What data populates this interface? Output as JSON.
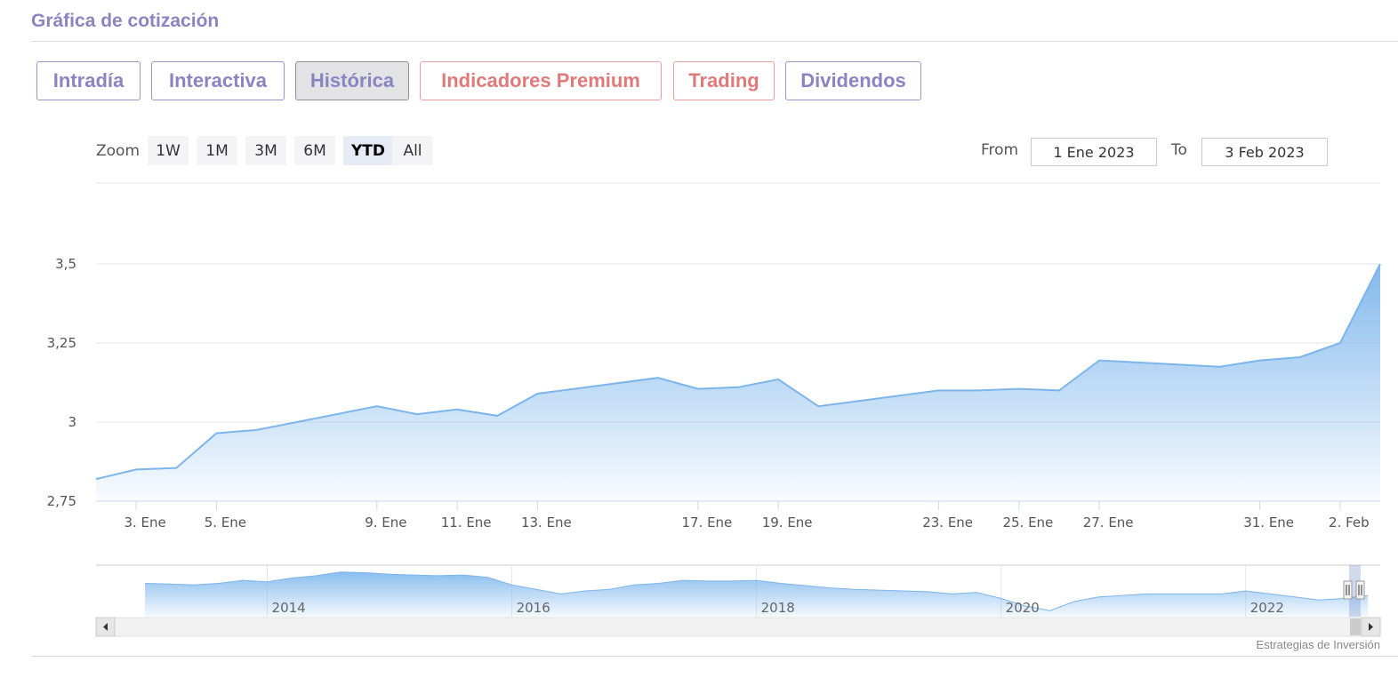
{
  "section_title": "Gráfica de cotización",
  "tabs": [
    {
      "label": "Intradía"
    },
    {
      "label": "Interactiva"
    },
    {
      "label": "Histórica"
    },
    {
      "label": "Indicadores Premium"
    },
    {
      "label": "Trading"
    },
    {
      "label": "Dividendos"
    }
  ],
  "range_selector": {
    "zoom_label": "Zoom",
    "buttons": [
      "1W",
      "1M",
      "3M",
      "6M",
      "YTD",
      "All"
    ],
    "selected": "YTD",
    "from_label": "From",
    "from_value": "1 Ene 2023",
    "to_label": "To",
    "to_value": "3 Feb 2023"
  },
  "credit": "Estrategias de Inversión",
  "colors": {
    "line": "#7cb5ec",
    "title": "#8a85c2",
    "premium": "#e07a7a"
  },
  "chart_data": {
    "type": "area",
    "ylim": [
      2.75,
      3.5
    ],
    "y_ticks": [
      "2,75",
      "3",
      "3,25",
      "3,5"
    ],
    "x_tick_labels": [
      "3. Ene",
      "5. Ene",
      "9. Ene",
      "11. Ene",
      "13. Ene",
      "17. Ene",
      "19. Ene",
      "23. Ene",
      "25. Ene",
      "27. Ene",
      "31. Ene",
      "2. Feb"
    ],
    "series": [
      {
        "x": [
          "2023-01-02",
          "2023-01-03",
          "2023-01-04",
          "2023-01-05",
          "2023-01-06",
          "2023-01-09",
          "2023-01-10",
          "2023-01-11",
          "2023-01-12",
          "2023-01-13",
          "2023-01-16",
          "2023-01-17",
          "2023-01-18",
          "2023-01-19",
          "2023-01-20",
          "2023-01-23",
          "2023-01-24",
          "2023-01-25",
          "2023-01-26",
          "2023-01-27",
          "2023-01-30",
          "2023-01-31",
          "2023-02-01",
          "2023-02-02",
          "2023-02-03"
        ],
        "values": [
          2.82,
          2.85,
          2.855,
          2.965,
          2.975,
          3.05,
          3.025,
          3.04,
          3.02,
          3.09,
          3.14,
          3.105,
          3.11,
          3.135,
          3.05,
          3.1,
          3.1,
          3.105,
          3.1,
          3.195,
          3.175,
          3.195,
          3.205,
          3.25,
          3.5
        ]
      }
    ],
    "navigator": {
      "x_tick_labels": [
        "2014",
        "2016",
        "2018",
        "2020",
        "2022"
      ],
      "series": [
        {
          "x": [
            2013.0,
            2013.2,
            2013.4,
            2013.6,
            2013.8,
            2014.0,
            2014.2,
            2014.4,
            2014.6,
            2014.8,
            2015.0,
            2015.2,
            2015.4,
            2015.6,
            2015.8,
            2016.0,
            2016.2,
            2016.4,
            2016.6,
            2016.8,
            2017.0,
            2017.2,
            2017.4,
            2017.6,
            2017.8,
            2018.0,
            2018.2,
            2018.4,
            2018.6,
            2018.8,
            2019.0,
            2019.2,
            2019.4,
            2019.6,
            2019.8,
            2020.0,
            2020.2,
            2020.4,
            2020.6,
            2020.8,
            2021.0,
            2021.2,
            2021.4,
            2021.6,
            2021.8,
            2022.0,
            2022.2,
            2022.4,
            2022.6,
            2022.8,
            2023.0
          ],
          "values": [
            4.0,
            3.95,
            3.9,
            4.0,
            4.2,
            4.1,
            4.35,
            4.5,
            4.75,
            4.7,
            4.6,
            4.55,
            4.5,
            4.55,
            4.4,
            3.9,
            3.6,
            3.3,
            3.5,
            3.6,
            3.9,
            4.0,
            4.2,
            4.15,
            4.15,
            4.2,
            4.0,
            3.85,
            3.7,
            3.6,
            3.55,
            3.5,
            3.45,
            3.3,
            3.4,
            3.0,
            2.5,
            2.2,
            2.8,
            3.1,
            3.2,
            3.3,
            3.3,
            3.3,
            3.3,
            3.5,
            3.3,
            3.1,
            2.9,
            3.0,
            3.2
          ]
        }
      ]
    }
  }
}
